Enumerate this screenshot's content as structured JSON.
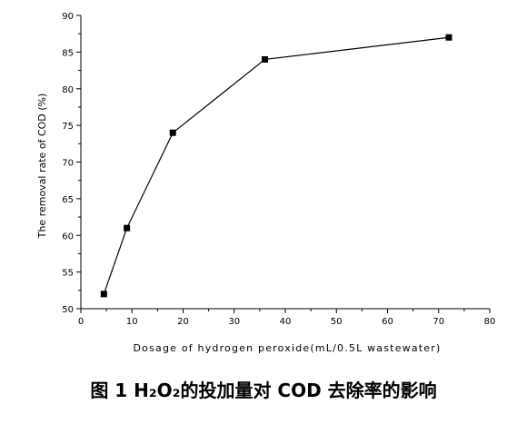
{
  "chart_data": {
    "type": "line",
    "title": "",
    "xlabel": "Dosage of hydrogen peroxide(mL/0.5L wastewater)",
    "ylabel": "The removal rate of COD (%)",
    "xlim": [
      0,
      80
    ],
    "ylim": [
      50,
      90
    ],
    "xticks": [
      "0",
      "10",
      "20",
      "30",
      "40",
      "50",
      "60",
      "70",
      "80"
    ],
    "yticks": [
      "50",
      "55",
      "60",
      "65",
      "70",
      "75",
      "80",
      "85",
      "90"
    ],
    "grid": false,
    "marker": "square",
    "color": "#000000",
    "series": [
      {
        "x": [
          4.5,
          9,
          18,
          36,
          72
        ],
        "y": [
          52,
          61,
          74,
          84,
          87
        ]
      }
    ]
  },
  "caption": "图 1  H₂O₂的投加量对 COD 去除率的影响"
}
